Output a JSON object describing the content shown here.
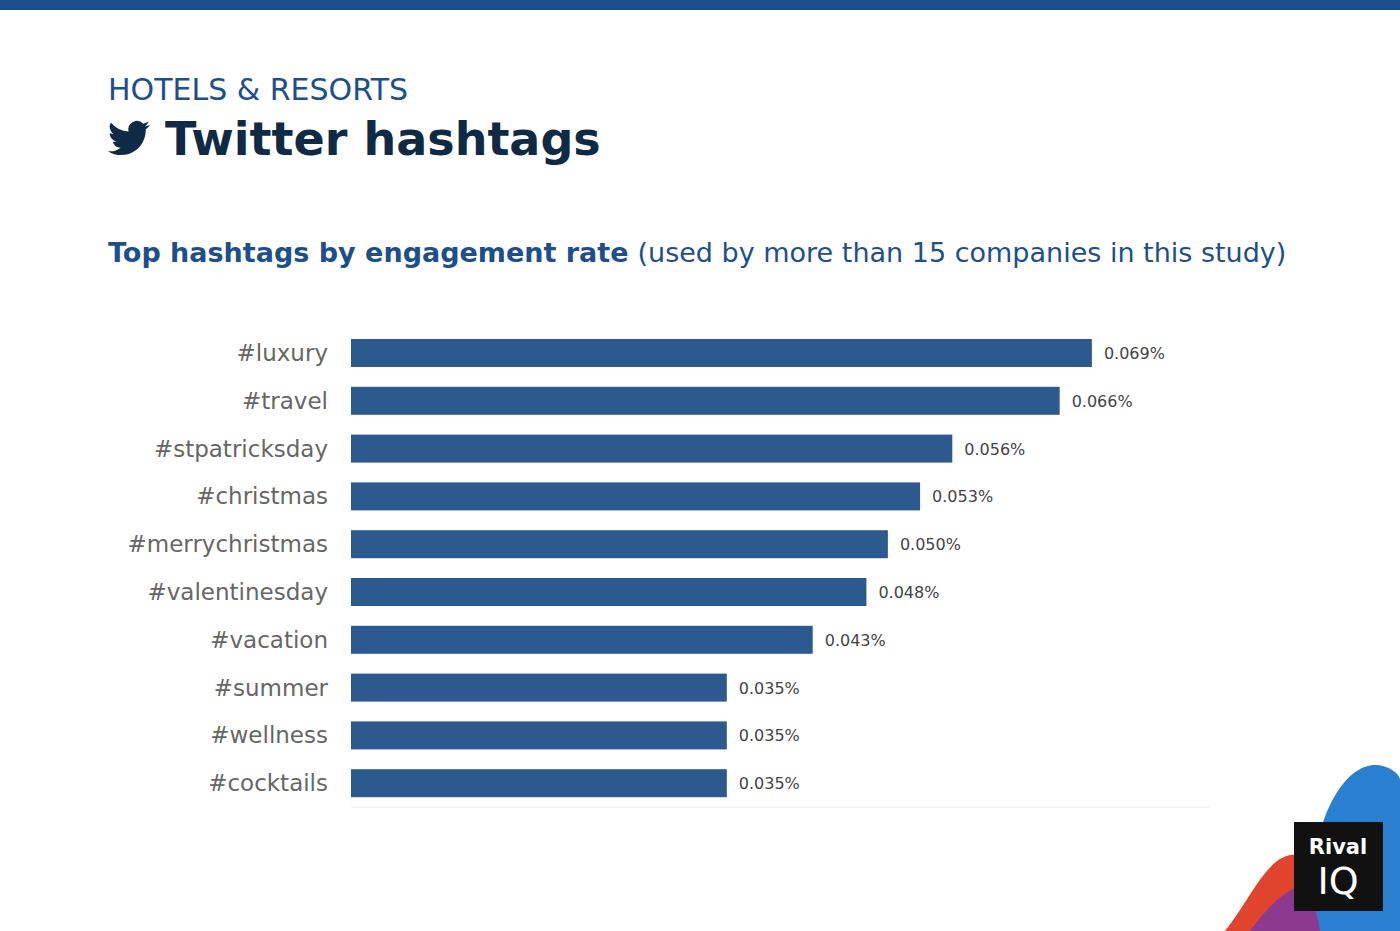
{
  "chart_data": {
    "type": "bar",
    "orientation": "horizontal",
    "title": "Twitter hashtags",
    "subtitle": "Top hashtags by engagement rate",
    "annotations": [
      "HOTELS & RESORTS",
      "(used by more than 15 companies in this study)",
      "Rival",
      "IQ"
    ],
    "categories": [
      "#luxury",
      "#travel",
      "#stpatricksday",
      "#christmas",
      "#merrychristmas",
      "#valentinesday",
      "#vacation",
      "#summer",
      "#wellness",
      "#cocktails"
    ],
    "values": [
      0.069,
      0.066,
      0.056,
      0.053,
      0.05,
      0.048,
      0.043,
      0.035,
      0.035,
      0.035
    ],
    "value_labels": [
      "0.069%",
      "0.066%",
      "0.056%",
      "0.053%",
      "0.050%",
      "0.048%",
      "0.043%",
      "0.035%",
      "0.035%",
      "0.035%"
    ],
    "color": "#2d5a8e",
    "xlim": [
      0,
      0.08
    ],
    "data_labels": true,
    "tick_labels": "y",
    "grid": false
  }
}
